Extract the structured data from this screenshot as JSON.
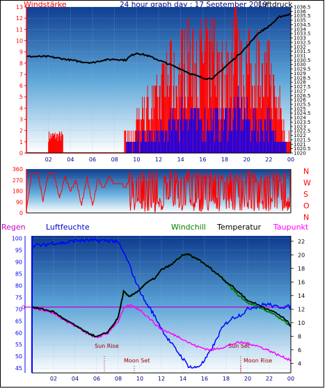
{
  "header": {
    "left_label": "Windstärke",
    "title": "24 hour graph day : 17 September 2019",
    "right_label": "Luftdruck"
  },
  "legend": {
    "regen": "Regen",
    "luftfeuchte": "Luftfeuchte",
    "windchill": "Windchill",
    "temperatur": "Temperatur",
    "taupunkt": "Taupunkt"
  },
  "events": {
    "sun_rise": "Sun Rise",
    "moon_set": "Moon Set",
    "sun_set": "Sun Set",
    "moon_rise": "Moon Rise"
  },
  "colors": {
    "wind_bars": "#ff0000",
    "wind_gust_blue": "#0000ff",
    "pressure": "#000000",
    "direction": "#ff0000",
    "humidity": "#0000ff",
    "temperature": "#000000",
    "windchill": "#008000",
    "dewpoint": "#ff00ff",
    "left_axis_red": "#ff0000",
    "left_axis_blue": "#0000ff",
    "rain_zero_line": "#cc00cc"
  },
  "chart_data": [
    {
      "type": "bar",
      "title": "24 hour graph day : 17 September 2019",
      "ylabel": "Windstärke",
      "y2label": "Luftdruck",
      "x_ticks": [
        "02",
        "04",
        "06",
        "08",
        "10",
        "12",
        "14",
        "16",
        "18",
        "20",
        "22",
        "00"
      ],
      "x_range": [
        0,
        24
      ],
      "ylim": [
        0,
        13
      ],
      "y_ticks": [
        0,
        1,
        2,
        3,
        4,
        5,
        6,
        7,
        8,
        9,
        10,
        11,
        12,
        13
      ],
      "y2lim": [
        1020,
        1036.5
      ],
      "y2_ticks": [
        1020,
        1020.5,
        1021,
        1021.5,
        1022,
        1022.5,
        1023,
        1023.5,
        1024,
        1024.5,
        1025,
        1025.5,
        1026,
        1026.5,
        1027,
        1027.5,
        1028,
        1028.5,
        1029,
        1029.5,
        1030,
        1030.5,
        1031,
        1031.5,
        1032,
        1032.5,
        1033,
        1033.5,
        1034,
        1034.5,
        1035,
        1035.5,
        1036,
        1036.5
      ],
      "series": [
        {
          "name": "Windstärke",
          "kind": "gust_bar_peaks",
          "x": [
            2.0,
            2.5,
            3.0,
            9.0,
            9.5,
            10.5,
            11.5,
            12.5,
            13.0,
            13.5,
            14.0,
            14.5,
            15.0,
            15.5,
            16.0,
            16.5,
            17.0,
            17.5,
            18.0,
            18.5,
            19.0,
            19.5,
            20.0,
            20.5,
            21.0,
            21.5,
            22.0,
            22.5,
            23.0,
            23.5
          ],
          "y": [
            2,
            2,
            2,
            2,
            2,
            5,
            6,
            8,
            10,
            9,
            11,
            12,
            12,
            10,
            13,
            11,
            12,
            9,
            10,
            11,
            13,
            10,
            12,
            10,
            11,
            9,
            10,
            7,
            6,
            2
          ]
        },
        {
          "name": "Windstärke mittel",
          "kind": "mean_bar_peaks",
          "x": [
            9.5,
            10.5,
            11.5,
            12.5,
            13.0,
            13.5,
            14.0,
            14.5,
            15.0,
            15.5,
            16.0,
            16.5,
            17.0,
            17.5,
            18.0,
            18.5,
            19.0,
            19.5,
            20.0,
            20.5,
            21.0,
            21.5,
            22.0,
            22.5
          ],
          "y": [
            1,
            2,
            2,
            3,
            4,
            4,
            5,
            6,
            6,
            4,
            5,
            4,
            5,
            4,
            5,
            5,
            6,
            5,
            5,
            4,
            4,
            4,
            5,
            2
          ]
        },
        {
          "name": "Luftdruck",
          "kind": "line",
          "x": [
            0,
            1,
            2,
            3,
            4,
            5,
            6,
            7,
            8,
            9,
            9.5,
            10,
            11,
            12,
            13,
            14,
            15,
            16,
            16.5,
            17,
            18,
            19,
            20,
            21,
            22,
            23,
            24
          ],
          "y": [
            1030.9,
            1030.9,
            1030.9,
            1030.7,
            1030.5,
            1030.3,
            1030.2,
            1030.5,
            1030.6,
            1030.5,
            1031.0,
            1031.3,
            1031.0,
            1030.5,
            1030.0,
            1029.5,
            1028.9,
            1028.5,
            1028.4,
            1028.5,
            1029.7,
            1030.8,
            1032.0,
            1033.5,
            1034.3,
            1035.4,
            1035.7
          ]
        }
      ]
    },
    {
      "type": "line",
      "title": "",
      "ylabel": "",
      "y2_labels": [
        "N",
        "W",
        "S",
        "O",
        "N"
      ],
      "y_ticks": [
        0,
        90,
        180,
        270,
        360
      ],
      "ylim": [
        0,
        360
      ],
      "x_range": [
        0,
        24
      ],
      "series": [
        {
          "name": "Windrichtung",
          "x": [
            0,
            0.5,
            1,
            1.5,
            2,
            2.5,
            3,
            3.5,
            4,
            4.5,
            5,
            5.5,
            6,
            6.5,
            7,
            7.5,
            8,
            8.5,
            9,
            9.5,
            10,
            10.5,
            11,
            11.5,
            12,
            12.5,
            13,
            13.5,
            14,
            14.5,
            15,
            15.5,
            16,
            16.5,
            17,
            17.5,
            18,
            18.5,
            19,
            19.5,
            20,
            20.5,
            21,
            21.5,
            22,
            22.5,
            23,
            23.5,
            24
          ],
          "y": [
            20,
            330,
            340,
            100,
            330,
            320,
            120,
            300,
            180,
            270,
            60,
            290,
            60,
            280,
            200,
            300,
            230,
            230,
            220,
            250,
            30,
            330,
            40,
            300,
            20,
            330,
            30,
            310,
            40,
            340,
            30,
            320,
            20,
            300,
            10,
            350,
            50,
            300,
            20,
            340,
            40,
            330,
            20,
            310,
            60,
            320,
            40,
            300,
            300
          ]
        }
      ]
    },
    {
      "type": "line",
      "title": "",
      "ylabel": "Luftfeuchte",
      "y2label": "Temperatur",
      "x_ticks": [
        "02",
        "04",
        "06",
        "08",
        "10",
        "12",
        "14",
        "16",
        "18",
        "20",
        "22",
        "00"
      ],
      "x_range": [
        0,
        24
      ],
      "ylim": [
        43,
        101
      ],
      "y_ticks": [
        45,
        50,
        55,
        60,
        65,
        70,
        75,
        80,
        85,
        90,
        95,
        100
      ],
      "y2lim": [
        2.6,
        22.8
      ],
      "y2_ticks": [
        4,
        6,
        8,
        10,
        12,
        14,
        16,
        18,
        20,
        22
      ],
      "rain_zero_label": "0",
      "series": [
        {
          "name": "Luftfeuchte",
          "x": [
            0,
            1,
            2,
            3,
            4,
            5,
            6,
            7,
            7.5,
            8,
            8.5,
            9,
            9.5,
            10,
            10.5,
            11,
            11.5,
            12,
            12.5,
            13,
            13.5,
            14,
            14.5,
            15,
            15.5,
            16,
            16.5,
            17,
            17.5,
            18,
            18.5,
            19,
            19.5,
            20,
            20.5,
            21,
            21.5,
            22,
            22.5,
            23,
            23.5,
            24
          ],
          "y": [
            97,
            97,
            98,
            98,
            99,
            99,
            99,
            99,
            99,
            98,
            94,
            89,
            83,
            78,
            73,
            70,
            66,
            62,
            58,
            55,
            52,
            49,
            46,
            45,
            46,
            48,
            52,
            56,
            61,
            64,
            66,
            67,
            68,
            70,
            71,
            71,
            72,
            72,
            71,
            71,
            71,
            71
          ]
        },
        {
          "name": "Temperatur",
          "x": [
            0,
            1,
            2,
            3,
            4,
            5,
            6,
            7,
            7.5,
            8,
            8.5,
            9,
            9.5,
            10,
            10.5,
            11,
            11.5,
            12,
            12.5,
            13,
            13.5,
            14,
            14.5,
            15,
            15.5,
            16,
            16.5,
            17,
            17.5,
            18,
            18.5,
            19,
            19.5,
            20,
            20.5,
            21,
            21.5,
            22,
            22.5,
            23,
            23.5,
            24
          ],
          "y": [
            12.3,
            12.0,
            11.6,
            10.5,
            9.6,
            8.6,
            7.9,
            8.6,
            9.6,
            10.8,
            14.6,
            13.8,
            14.3,
            14.9,
            15.7,
            16.2,
            16.7,
            17.8,
            18.2,
            18.6,
            19.4,
            19.9,
            20.1,
            19.6,
            19.3,
            18.6,
            18.1,
            17.4,
            16.8,
            16.0,
            15.5,
            14.7,
            14.1,
            13.2,
            13.0,
            12.6,
            12.3,
            11.8,
            11.6,
            11.0,
            10.5,
            9.6
          ]
        },
        {
          "name": "Windchill",
          "x": [
            0,
            1,
            2,
            3,
            4,
            5,
            6,
            7,
            7.5,
            8,
            8.5,
            9,
            9.5,
            10,
            10.5,
            11,
            11.5,
            12,
            12.5,
            13,
            13.5,
            14,
            14.5,
            15,
            15.5,
            16,
            16.5,
            17,
            17.5,
            18,
            18.5,
            19,
            19.5,
            20,
            20.5,
            21,
            21.5,
            22,
            22.5,
            23,
            23.5,
            24
          ],
          "y": [
            12.3,
            12.0,
            11.6,
            10.5,
            9.6,
            8.6,
            7.9,
            8.6,
            9.6,
            10.8,
            14.6,
            13.8,
            14.3,
            14.9,
            15.7,
            16.2,
            16.7,
            17.8,
            18.2,
            18.6,
            19.4,
            19.9,
            20.1,
            19.6,
            19.3,
            18.6,
            18.1,
            17.4,
            16.8,
            16.0,
            15.1,
            14.2,
            13.6,
            12.9,
            12.7,
            12.3,
            12.0,
            11.5,
            11.2,
            10.6,
            10.1,
            9.5
          ]
        },
        {
          "name": "Taupunkt",
          "x": [
            0,
            1,
            2,
            3,
            4,
            5,
            6,
            7,
            7.5,
            8,
            8.5,
            9,
            9.5,
            10,
            10.5,
            11,
            11.5,
            12,
            12.5,
            13,
            13.5,
            14,
            14.5,
            15,
            15.5,
            16,
            16.5,
            17,
            17.5,
            18,
            18.5,
            19,
            19.5,
            20,
            20.5,
            21,
            21.5,
            22,
            22.5,
            23,
            23.5,
            24
          ],
          "y": [
            12.2,
            11.9,
            11.4,
            10.4,
            9.5,
            8.5,
            7.8,
            8.4,
            9.4,
            10.2,
            12.0,
            12.6,
            12.3,
            11.9,
            11.2,
            10.5,
            9.7,
            9.0,
            8.7,
            8.3,
            8.0,
            7.6,
            7.1,
            6.7,
            6.4,
            6.2,
            6.0,
            6.1,
            6.3,
            6.5,
            6.8,
            7.0,
            7.1,
            6.9,
            6.8,
            6.5,
            6.2,
            5.9,
            5.5,
            5.1,
            4.8,
            4.5
          ]
        }
      ]
    }
  ]
}
